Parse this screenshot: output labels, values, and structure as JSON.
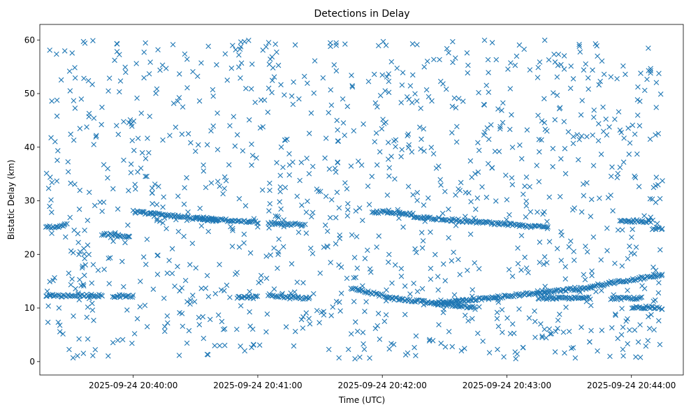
{
  "chart_data": {
    "type": "scatter",
    "title": "Detections in Delay",
    "xlabel": "Time (UTC)",
    "ylabel": "Bistatic Delay (km)",
    "marker": "x",
    "color": "#1f77b4",
    "grid": false,
    "x_ticks": [
      "2025-09-24 20:40:00",
      "2025-09-24 20:41:00",
      "2025-09-24 20:42:00",
      "2025-09-24 20:43:00",
      "2025-09-24 20:44:00"
    ],
    "xlim": [
      "2025-09-24 20:39:15",
      "2025-09-24 20:44:25"
    ],
    "y_ticks": [
      0,
      10,
      20,
      30,
      40,
      50,
      60
    ],
    "ylim": [
      -2.5,
      62.9
    ],
    "tracks": [
      {
        "from": "2025-09-24 20:39:18",
        "to": "2025-09-24 20:39:45",
        "delay_start_km": 12.3,
        "delay_end_km": 12.3
      },
      {
        "from": "2025-09-24 20:39:50",
        "to": "2025-09-24 20:40:00",
        "delay_start_km": 12.2,
        "delay_end_km": 12.2
      },
      {
        "from": "2025-09-24 20:40:50",
        "to": "2025-09-24 20:41:00",
        "delay_start_km": 12.0,
        "delay_end_km": 12.0
      },
      {
        "from": "2025-09-24 20:41:05",
        "to": "2025-09-24 20:41:25",
        "delay_start_km": 12.4,
        "delay_end_km": 11.8
      },
      {
        "from": "2025-09-24 20:41:45",
        "to": "2025-09-24 20:42:05",
        "delay_start_km": 13.8,
        "delay_end_km": 11.8
      },
      {
        "from": "2025-09-24 20:42:05",
        "to": "2025-09-24 20:42:45",
        "delay_start_km": 11.8,
        "delay_end_km": 10.0
      },
      {
        "from": "2025-09-24 20:42:25",
        "to": "2025-09-24 20:43:40",
        "delay_start_km": 10.8,
        "delay_end_km": 13.8
      },
      {
        "from": "2025-09-24 20:43:15",
        "to": "2025-09-24 20:43:40",
        "delay_start_km": 11.8,
        "delay_end_km": 11.8
      },
      {
        "from": "2025-09-24 20:43:40",
        "to": "2025-09-24 20:44:15",
        "delay_start_km": 14.0,
        "delay_end_km": 16.2
      },
      {
        "from": "2025-09-24 20:43:50",
        "to": "2025-09-24 20:44:05",
        "delay_start_km": 11.8,
        "delay_end_km": 11.8
      },
      {
        "from": "2025-09-24 20:44:00",
        "to": "2025-09-24 20:44:15",
        "delay_start_km": 10.2,
        "delay_end_km": 10.0
      },
      {
        "from": "2025-09-24 20:39:18",
        "to": "2025-09-24 20:39:28",
        "delay_start_km": 25.0,
        "delay_end_km": 25.5
      },
      {
        "from": "2025-09-24 20:39:45",
        "to": "2025-09-24 20:39:58",
        "delay_start_km": 23.8,
        "delay_end_km": 23.2
      },
      {
        "from": "2025-09-24 20:40:00",
        "to": "2025-09-24 20:40:40",
        "delay_start_km": 28.0,
        "delay_end_km": 26.3
      },
      {
        "from": "2025-09-24 20:40:30",
        "to": "2025-09-24 20:41:00",
        "delay_start_km": 26.8,
        "delay_end_km": 26.0
      },
      {
        "from": "2025-09-24 20:41:05",
        "to": "2025-09-24 20:41:22",
        "delay_start_km": 25.8,
        "delay_end_km": 25.5
      },
      {
        "from": "2025-09-24 20:41:55",
        "to": "2025-09-24 20:42:15",
        "delay_start_km": 28.0,
        "delay_end_km": 27.5
      },
      {
        "from": "2025-09-24 20:42:15",
        "to": "2025-09-24 20:43:20",
        "delay_start_km": 27.0,
        "delay_end_km": 25.0
      },
      {
        "from": "2025-09-24 20:43:55",
        "to": "2025-09-24 20:44:10",
        "delay_start_km": 26.2,
        "delay_end_km": 26.2
      },
      {
        "from": "2025-09-24 20:44:10",
        "to": "2025-09-24 20:44:15",
        "delay_start_km": 24.8,
        "delay_end_km": 24.8
      }
    ],
    "clutter": {
      "from": "2025-09-24 20:39:18",
      "to": "2025-09-24 20:44:15",
      "delay_min_km": 0.5,
      "delay_max_km": 60.0
    }
  }
}
